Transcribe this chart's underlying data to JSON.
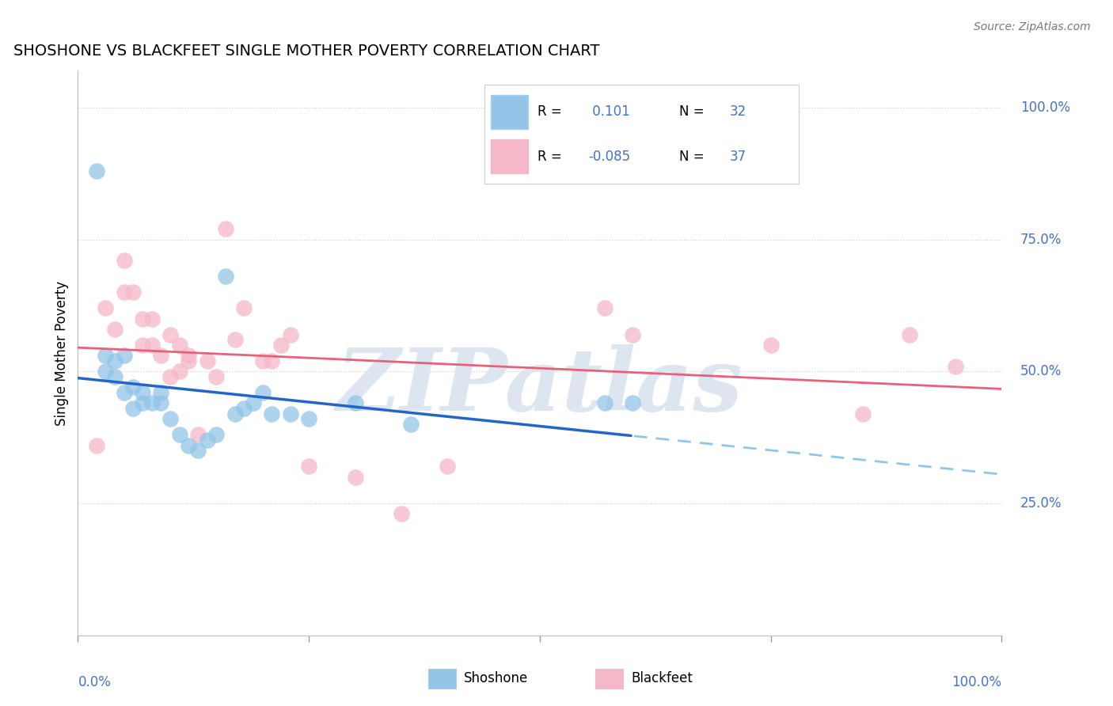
{
  "title": "SHOSHONE VS BLACKFEET SINGLE MOTHER POVERTY CORRELATION CHART",
  "source": "Source: ZipAtlas.com",
  "ylabel": "Single Mother Poverty",
  "ytick_labels": [
    "100.0%",
    "75.0%",
    "50.0%",
    "25.0%"
  ],
  "ytick_values": [
    1.0,
    0.75,
    0.5,
    0.25
  ],
  "xlim": [
    0.0,
    1.0
  ],
  "ylim": [
    0.0,
    1.07
  ],
  "shoshone_R": "0.101",
  "shoshone_N": "32",
  "blackfeet_R": "-0.085",
  "blackfeet_N": "37",
  "shoshone_x": [
    0.02,
    0.03,
    0.03,
    0.04,
    0.04,
    0.05,
    0.05,
    0.06,
    0.06,
    0.07,
    0.07,
    0.08,
    0.09,
    0.09,
    0.1,
    0.11,
    0.12,
    0.13,
    0.14,
    0.15,
    0.16,
    0.17,
    0.18,
    0.19,
    0.2,
    0.21,
    0.23,
    0.25,
    0.3,
    0.36,
    0.57,
    0.6
  ],
  "shoshone_y": [
    0.88,
    0.5,
    0.53,
    0.49,
    0.52,
    0.53,
    0.46,
    0.47,
    0.43,
    0.44,
    0.46,
    0.44,
    0.44,
    0.46,
    0.41,
    0.38,
    0.36,
    0.35,
    0.37,
    0.38,
    0.68,
    0.42,
    0.43,
    0.44,
    0.46,
    0.42,
    0.42,
    0.41,
    0.44,
    0.4,
    0.44,
    0.44
  ],
  "blackfeet_x": [
    0.02,
    0.03,
    0.04,
    0.05,
    0.05,
    0.06,
    0.07,
    0.07,
    0.08,
    0.08,
    0.09,
    0.1,
    0.1,
    0.11,
    0.11,
    0.12,
    0.12,
    0.13,
    0.14,
    0.15,
    0.16,
    0.17,
    0.18,
    0.2,
    0.21,
    0.22,
    0.23,
    0.25,
    0.3,
    0.35,
    0.4,
    0.57,
    0.6,
    0.75,
    0.85,
    0.9,
    0.95
  ],
  "blackfeet_y": [
    0.36,
    0.62,
    0.58,
    0.65,
    0.71,
    0.65,
    0.55,
    0.6,
    0.55,
    0.6,
    0.53,
    0.57,
    0.49,
    0.5,
    0.55,
    0.53,
    0.52,
    0.38,
    0.52,
    0.49,
    0.77,
    0.56,
    0.62,
    0.52,
    0.52,
    0.55,
    0.57,
    0.32,
    0.3,
    0.23,
    0.32,
    0.62,
    0.57,
    0.55,
    0.42,
    0.57,
    0.51
  ],
  "shoshone_color": "#92c5e8",
  "blackfeet_color": "#f5b8c8",
  "blue_line_color": "#2565c7",
  "pink_line_color": "#e8607a",
  "blue_dash_color": "#92c5e8",
  "watermark_color": "#dde6f0",
  "watermark_text": "ZIPatlas",
  "background_color": "#ffffff",
  "grid_color": "#cccccc",
  "blue_text_color": "#4472c4",
  "title_color": "#000000",
  "source_color": "#777777"
}
